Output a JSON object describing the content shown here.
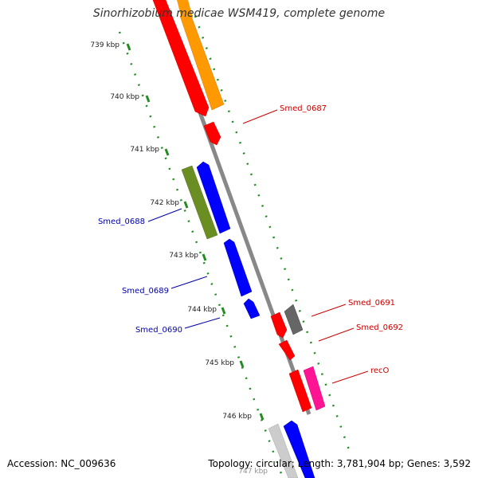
{
  "title": "Sinorhizobium medicae WSM419, complete genome",
  "footer": {
    "accession": "Accession: NC_009636",
    "summary": "Topology: circular; Length: 3,781,904 bp; Genes: 3,592"
  },
  "ticks": [
    {
      "label": "739 kbp"
    },
    {
      "label": "740 kbp"
    },
    {
      "label": "741 kbp"
    },
    {
      "label": "742 kbp"
    },
    {
      "label": "743 kbp"
    },
    {
      "label": "744 kbp"
    },
    {
      "label": "745 kbp"
    },
    {
      "label": "746 kbp"
    },
    {
      "label": "747 kbp"
    }
  ],
  "genes": [
    {
      "label": "Smed_0687",
      "color": "#cc0000"
    },
    {
      "label": "Smed_0688",
      "color": "#0000aa"
    },
    {
      "label": "Smed_0689",
      "color": "#0000aa"
    },
    {
      "label": "Smed_0690",
      "color": "#0000aa"
    },
    {
      "label": "Smed_0691",
      "color": "#cc0000"
    },
    {
      "label": "Smed_0692",
      "color": "#cc0000"
    },
    {
      "label": "recO",
      "color": "#cc0000"
    }
  ],
  "colors": {
    "red": "#ff0000",
    "orange": "#ff9900",
    "blue": "#0000ff",
    "olive": "#6b8e23",
    "gray": "#666666",
    "magenta": "#ff1493",
    "lightgray": "#cccccc",
    "backbone": "#888888",
    "dots": "#228b22"
  }
}
